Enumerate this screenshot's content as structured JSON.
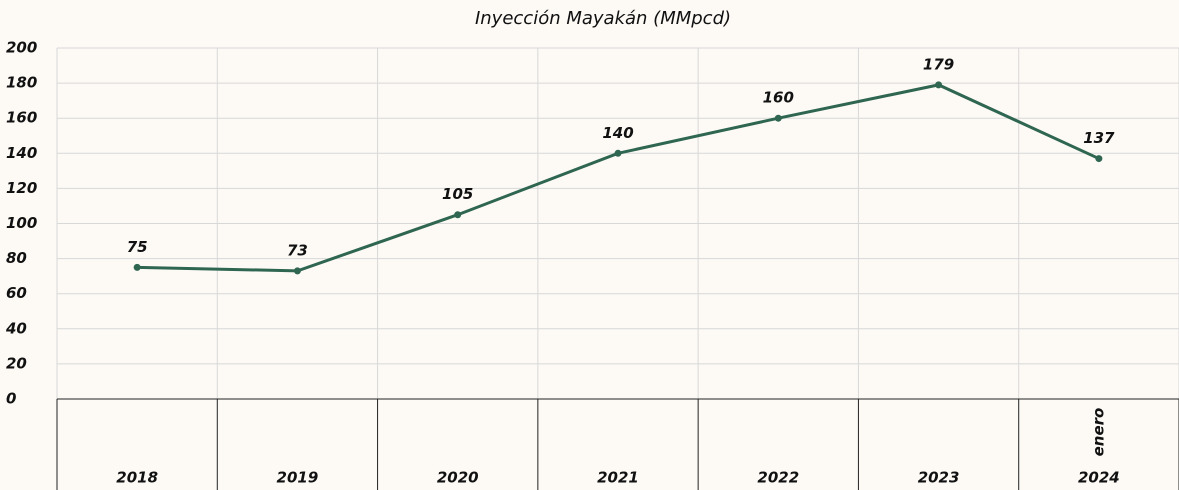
{
  "chart_data": {
    "type": "line",
    "title": "Inyección Mayakán (MMpcd)",
    "categories": [
      "2018",
      "2019",
      "2020",
      "2021",
      "2022",
      "2023",
      "2024"
    ],
    "annotation": "enero",
    "values": [
      75,
      73,
      105,
      140,
      160,
      179,
      137
    ],
    "color": "#2f6651",
    "ylim": [
      0,
      200
    ],
    "yticks": [
      0,
      20,
      40,
      60,
      80,
      100,
      120,
      140,
      160,
      180,
      200
    ],
    "grid": true
  }
}
